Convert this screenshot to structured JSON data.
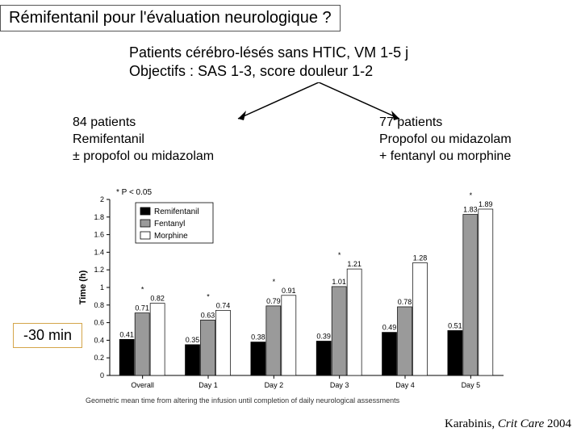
{
  "title": "Rémifentanil pour l'évaluation neurologique ?",
  "subtitle_line1": "Patients cérébro-lésés sans HTIC, VM 1-5 j",
  "subtitle_line2": "Objectifs : SAS 1-3, score douleur  1-2",
  "arm_left": {
    "l1": "84 patients",
    "l2": "Remifentanil",
    "l3": "± propofol ou midazolam"
  },
  "arm_right": {
    "l1": "77 patients",
    "l2": "Propofol ou midazolam",
    "l3": "+ fentanyl ou morphine"
  },
  "badge": "-30 min",
  "citation_author": "Karabinis, ",
  "citation_journal": "Crit Care",
  "citation_year": "  2004",
  "chart": {
    "type": "bar",
    "p_annotation": "* P < 0.05",
    "y_label": "Time (h)",
    "ylim": [
      0,
      2.0
    ],
    "ytick_step": 0.2,
    "categories": [
      "Overall",
      "Day 1",
      "Day 2",
      "Day 3",
      "Day 4",
      "Day 5"
    ],
    "series": [
      {
        "name": "Remifentanil",
        "color": "#000000",
        "values": [
          0.41,
          0.35,
          0.38,
          0.39,
          0.49,
          0.51
        ]
      },
      {
        "name": "Fentanyl",
        "color": "#9a9a9a",
        "values": [
          0.71,
          0.63,
          0.79,
          1.01,
          0.78,
          1.83
        ]
      },
      {
        "name": "Morphine",
        "color": "#ffffff",
        "values": [
          0.82,
          0.74,
          0.91,
          1.21,
          1.28,
          1.89
        ]
      }
    ],
    "star_days": [
      "Overall",
      "Day 1",
      "Day 2",
      "Day 3",
      "Day 5"
    ],
    "value_labels": {
      "Overall": [
        "0.41",
        "0.71",
        "0.82"
      ],
      "Day 1": [
        "0.35",
        "0.63",
        "0.74"
      ],
      "Day 2": [
        "0.38",
        "0.79",
        "0.91"
      ],
      "Day 3": [
        "0.39",
        "1.01",
        "1.21"
      ],
      "Day 4": [
        "0.49",
        "0.78",
        "1.28"
      ],
      "Day 5": [
        "0.51",
        "1.83",
        "1.89"
      ]
    },
    "footnote": "Geometric mean time from altering the infusion until completion of daily neurological assessments",
    "background_color": "#ffffff",
    "axis_color": "#000000",
    "grid": false,
    "bar_group_width": 0.7,
    "label_fontsize": 9,
    "axis_fontsize": 11
  }
}
